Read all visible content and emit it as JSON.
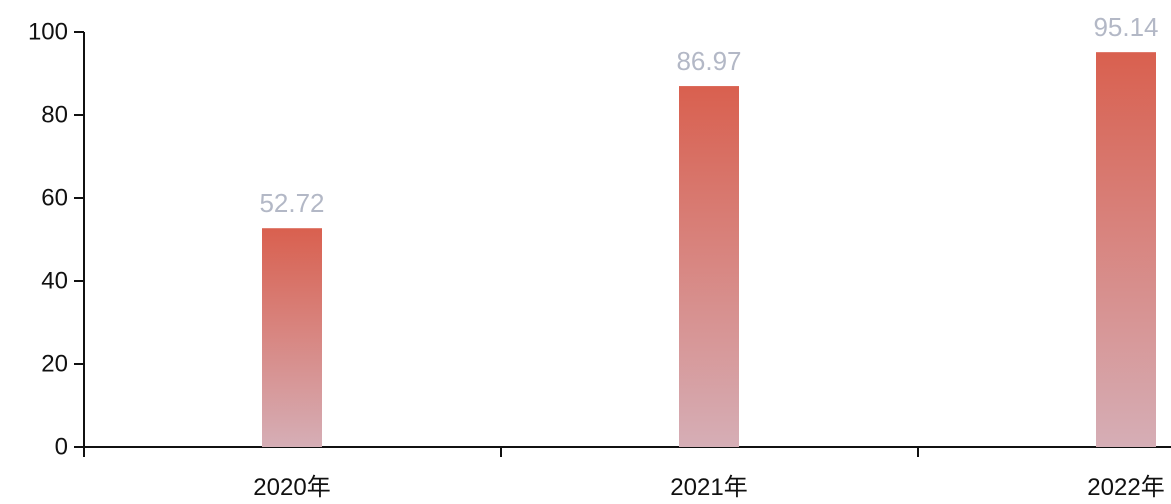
{
  "chart_data": {
    "type": "bar",
    "categories": [
      "2020年",
      "2021年",
      "2022年"
    ],
    "values": [
      52.72,
      86.97,
      95.14
    ],
    "value_labels": [
      "52.72",
      "86.97",
      "95.14"
    ],
    "ylim": [
      0,
      100
    ],
    "yticks": [
      0,
      20,
      40,
      60,
      80,
      100
    ],
    "grid": false,
    "legend": "none",
    "colors": {
      "bar_top": "#d9604f",
      "bar_bottom": "#d6aeb6",
      "data_label": "#b3b8c6",
      "axis": "#111111"
    }
  }
}
